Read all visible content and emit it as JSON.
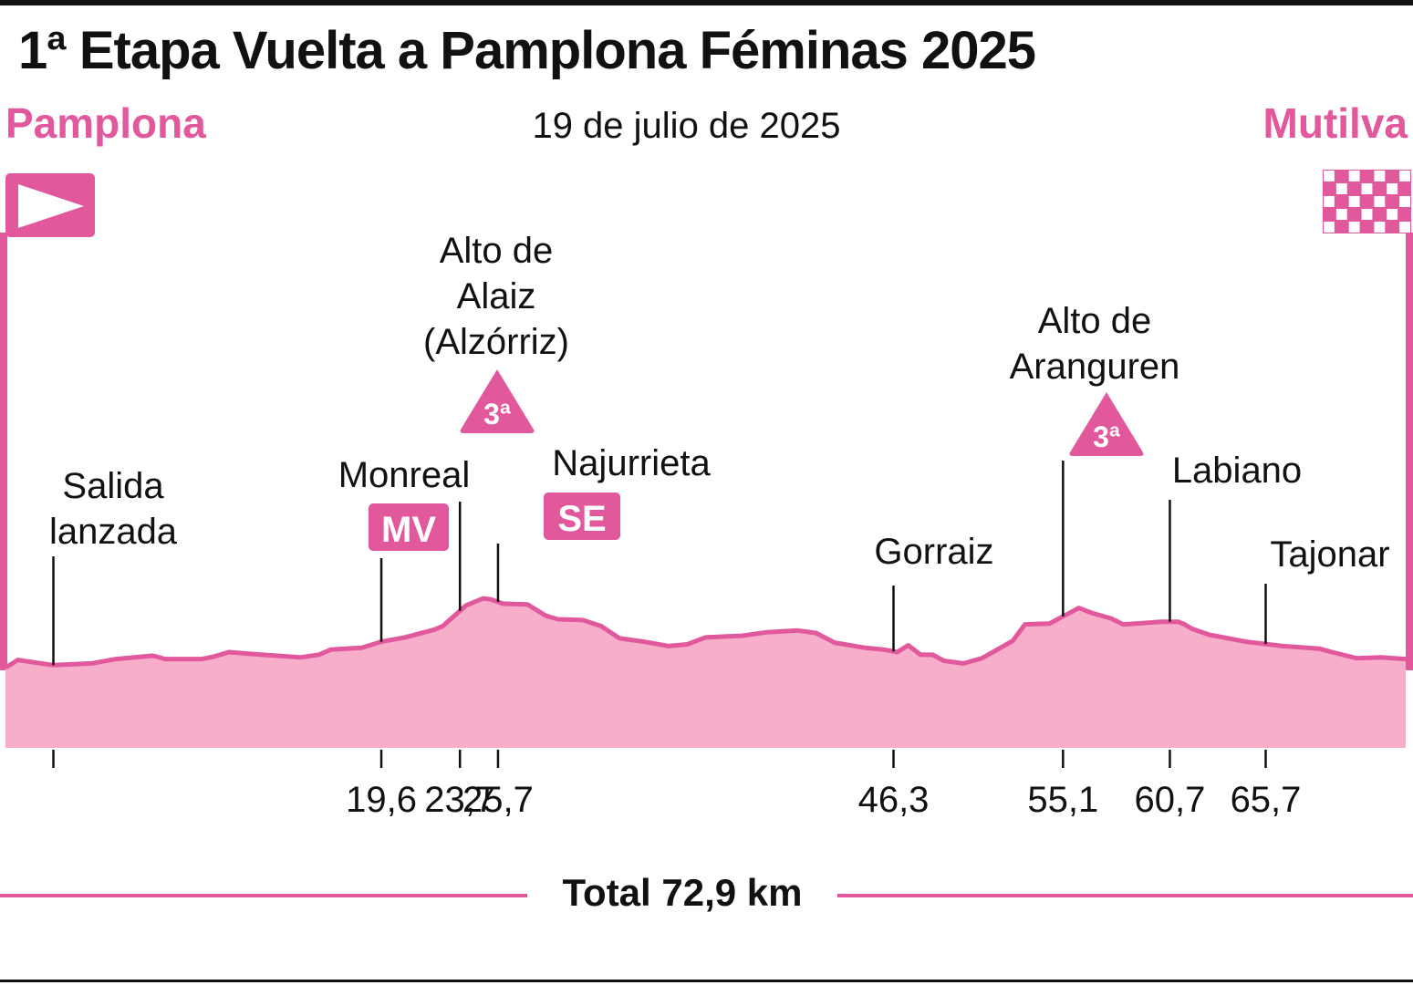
{
  "title": "1ª Etapa Vuelta a Pamplona Féminas 2025",
  "date": "19 de julio de 2025",
  "start_city": "Pamplona",
  "end_city": "Mutilva",
  "total_label": "Total 72,9 km",
  "colors": {
    "accent": "#e2589d",
    "fill": "#f6aecb",
    "text": "#111111"
  },
  "icons": {
    "start": "start-flag-icon",
    "finish": "checkered-flag-icon"
  },
  "chart_data": {
    "type": "area",
    "title": "1ª Etapa Vuelta a Pamplona Féminas 2025",
    "xlabel": "",
    "ylabel": "",
    "xlim": [
      0,
      72.9
    ],
    "total_km": 72.9,
    "elevation_profile": [
      {
        "x": 0.0,
        "y": 0.03
      },
      {
        "x": 1.0,
        "y": 0.12
      },
      {
        "x": 3.9,
        "y": 0.06
      },
      {
        "x": 7.0,
        "y": 0.08
      },
      {
        "x": 9.0,
        "y": 0.13
      },
      {
        "x": 12.0,
        "y": 0.17
      },
      {
        "x": 13.0,
        "y": 0.13
      },
      {
        "x": 16.0,
        "y": 0.13
      },
      {
        "x": 17.0,
        "y": 0.16
      },
      {
        "x": 18.2,
        "y": 0.21
      },
      {
        "x": 20.0,
        "y": 0.19
      },
      {
        "x": 24.0,
        "y": 0.15
      },
      {
        "x": 25.5,
        "y": 0.18
      },
      {
        "x": 26.5,
        "y": 0.24
      },
      {
        "x": 29.0,
        "y": 0.26
      },
      {
        "x": 30.6,
        "y": 0.33
      },
      {
        "x": 32.5,
        "y": 0.38
      },
      {
        "x": 34.9,
        "y": 0.47
      },
      {
        "x": 35.6,
        "y": 0.51
      },
      {
        "x": 37.5,
        "y": 0.75
      },
      {
        "x": 38.9,
        "y": 0.83
      },
      {
        "x": 39.5,
        "y": 0.82
      },
      {
        "x": 40.5,
        "y": 0.77
      },
      {
        "x": 42.5,
        "y": 0.76
      },
      {
        "x": 44.0,
        "y": 0.63
      },
      {
        "x": 45.0,
        "y": 0.59
      },
      {
        "x": 47.0,
        "y": 0.58
      },
      {
        "x": 48.5,
        "y": 0.51
      },
      {
        "x": 50.0,
        "y": 0.37
      },
      {
        "x": 52.0,
        "y": 0.33
      },
      {
        "x": 54.0,
        "y": 0.28
      },
      {
        "x": 55.5,
        "y": 0.3
      },
      {
        "x": 57.0,
        "y": 0.38
      },
      {
        "x": 60.0,
        "y": 0.4
      },
      {
        "x": 62.0,
        "y": 0.44
      },
      {
        "x": 64.5,
        "y": 0.46
      },
      {
        "x": 66.0,
        "y": 0.43
      },
      {
        "x": 67.5,
        "y": 0.32
      },
      {
        "x": 70.0,
        "y": 0.26
      },
      {
        "x": 71.5,
        "y": 0.24
      },
      {
        "x": 72.6,
        "y": 0.21
      },
      {
        "x": 73.5,
        "y": 0.29
      },
      {
        "x": 74.5,
        "y": 0.18
      },
      {
        "x": 75.5,
        "y": 0.18
      },
      {
        "x": 76.4,
        "y": 0.11
      },
      {
        "x": 78.0,
        "y": 0.08
      },
      {
        "x": 79.5,
        "y": 0.14
      },
      {
        "x": 81.0,
        "y": 0.26
      },
      {
        "x": 82.0,
        "y": 0.34
      },
      {
        "x": 83.0,
        "y": 0.53
      },
      {
        "x": 85.0,
        "y": 0.54
      },
      {
        "x": 87.4,
        "y": 0.72
      },
      {
        "x": 88.5,
        "y": 0.66
      },
      {
        "x": 90.0,
        "y": 0.6
      },
      {
        "x": 91.0,
        "y": 0.53
      },
      {
        "x": 92.0,
        "y": 0.54
      },
      {
        "x": 94.0,
        "y": 0.56
      },
      {
        "x": 95.5,
        "y": 0.56
      },
      {
        "x": 96.0,
        "y": 0.53
      },
      {
        "x": 96.6,
        "y": 0.48
      },
      {
        "x": 98.0,
        "y": 0.41
      },
      {
        "x": 101.0,
        "y": 0.33
      },
      {
        "x": 104.0,
        "y": 0.28
      },
      {
        "x": 107.0,
        "y": 0.25
      },
      {
        "x": 108.0,
        "y": 0.21
      },
      {
        "x": 110.0,
        "y": 0.14
      },
      {
        "x": 112.0,
        "y": 0.15
      },
      {
        "x": 114.0,
        "y": 0.13
      }
    ],
    "km_markers": [
      {
        "km": null,
        "label": "",
        "profile_x": 3.9
      },
      {
        "km": 19.6,
        "label": "19,6",
        "profile_x": 30.6
      },
      {
        "km": 23.7,
        "label": "23,7",
        "profile_x": 37.0
      },
      {
        "km": 25.7,
        "label": "25,7",
        "profile_x": 40.1
      },
      {
        "km": 46.3,
        "label": "46,3",
        "profile_x": 72.3
      },
      {
        "km": 55.1,
        "label": "55,1",
        "profile_x": 86.1
      },
      {
        "km": 60.7,
        "label": "60,7",
        "profile_x": 94.8
      },
      {
        "km": 65.7,
        "label": "65,7",
        "profile_x": 102.6
      }
    ],
    "waypoints": [
      {
        "name": [
          "Salida",
          "lanzada"
        ],
        "profile_x": 3.9,
        "badge": null
      },
      {
        "name": [
          "Monreal"
        ],
        "profile_x": 30.6,
        "badge": "MV"
      },
      {
        "name": [
          "Alto de",
          "Alaiz",
          "(Alzórriz)"
        ],
        "profile_x": 37.0,
        "badge": "3ª"
      },
      {
        "name": [
          "Najurrieta"
        ],
        "profile_x": 40.1,
        "badge": "SE"
      },
      {
        "name": [
          "Gorraiz"
        ],
        "profile_x": 72.3,
        "badge": null
      },
      {
        "name": [
          "Alto de",
          "Aranguren"
        ],
        "profile_x": 86.1,
        "badge": "3ª"
      },
      {
        "name": [
          "Labiano"
        ],
        "profile_x": 94.8,
        "badge": null
      },
      {
        "name": [
          "Tajonar"
        ],
        "profile_x": 102.6,
        "badge": null
      }
    ]
  }
}
